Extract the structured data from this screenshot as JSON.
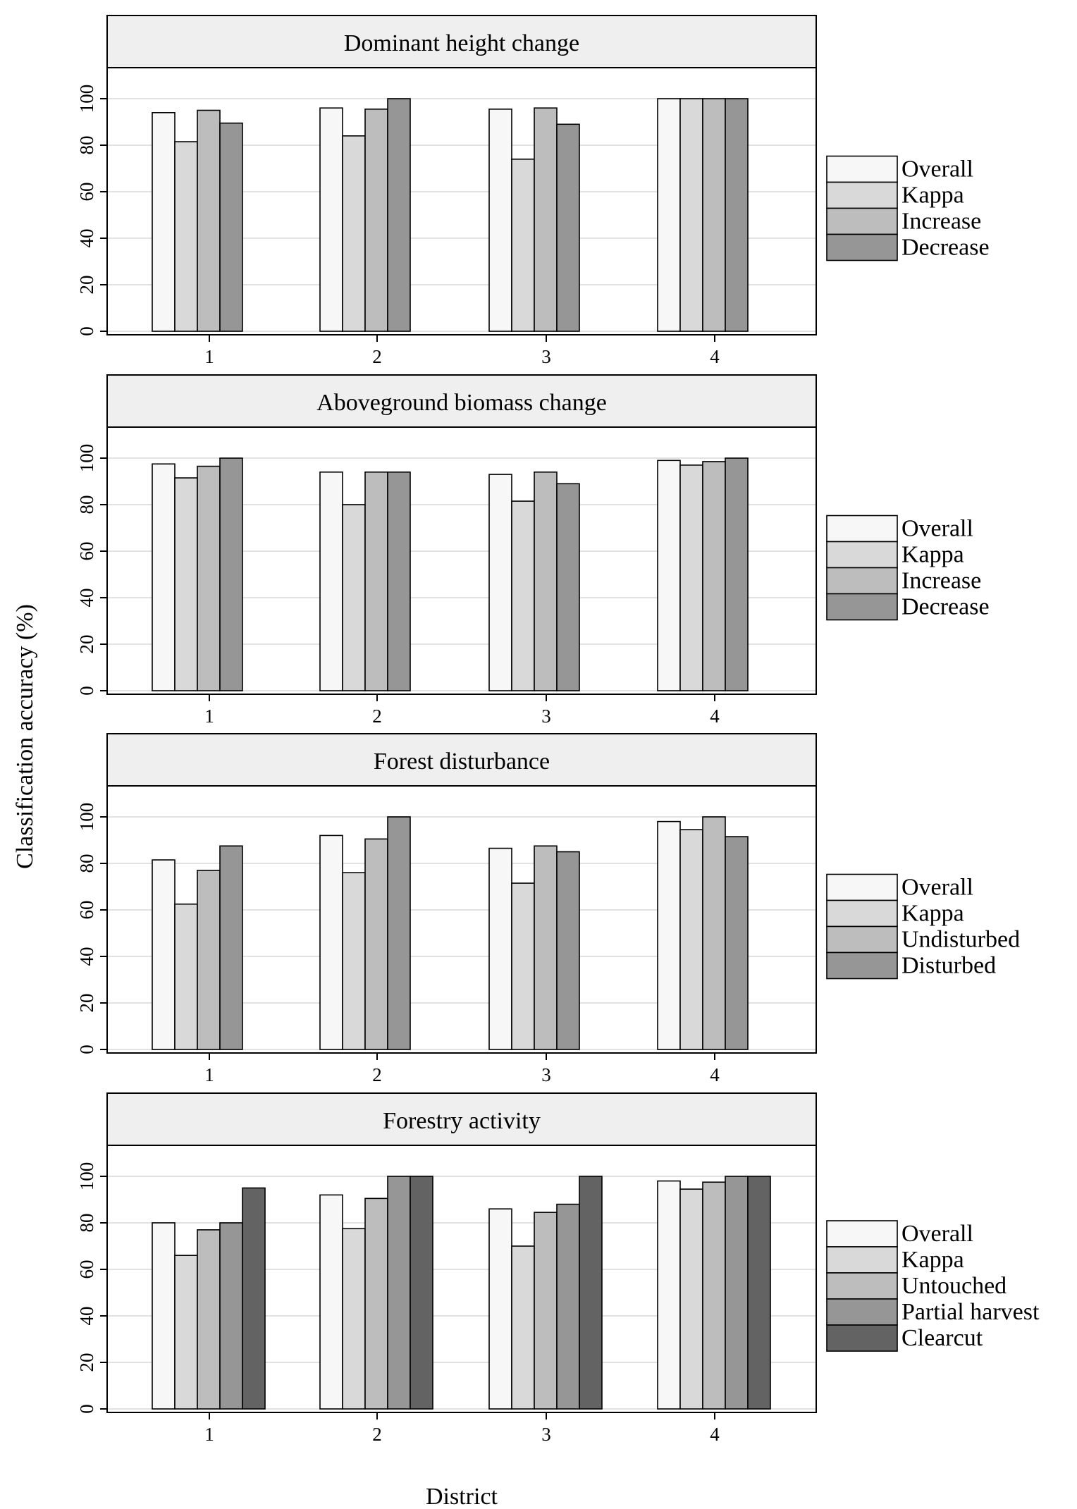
{
  "figure": {
    "ylabel": "Classification accuracy (%)",
    "xlabel": "District"
  },
  "colors": {
    "background": "#ffffff",
    "strip_fill": "#efefef",
    "gridline": "#e2e2e2",
    "series_palette": [
      "#f7f7f7",
      "#d9d9d9",
      "#bdbdbd",
      "#969696",
      "#636363"
    ]
  },
  "chart_data": [
    {
      "type": "bar",
      "title": "Dominant height change",
      "categories": [
        "1",
        "2",
        "3",
        "4"
      ],
      "ylim": [
        0,
        100
      ],
      "yticks": [
        "0",
        "20",
        "40",
        "60",
        "80",
        "100"
      ],
      "grid": true,
      "legend": "right",
      "series": [
        {
          "name": "Overall",
          "values": [
            94,
            96,
            95.5,
            100
          ]
        },
        {
          "name": "Kappa",
          "values": [
            81.5,
            84,
            74,
            100
          ]
        },
        {
          "name": "Increase",
          "values": [
            95,
            95.5,
            96,
            100
          ]
        },
        {
          "name": "Decrease",
          "values": [
            89.5,
            100,
            89,
            100
          ]
        }
      ]
    },
    {
      "type": "bar",
      "title": "Aboveground biomass change",
      "categories": [
        "1",
        "2",
        "3",
        "4"
      ],
      "ylim": [
        0,
        100
      ],
      "yticks": [
        "0",
        "20",
        "40",
        "60",
        "80",
        "100"
      ],
      "grid": true,
      "legend": "right",
      "series": [
        {
          "name": "Overall",
          "values": [
            97.5,
            94,
            93,
            99
          ]
        },
        {
          "name": "Kappa",
          "values": [
            91.5,
            80,
            81.5,
            97
          ]
        },
        {
          "name": "Increase",
          "values": [
            96.5,
            94,
            94,
            98.5
          ]
        },
        {
          "name": "Decrease",
          "values": [
            100,
            94,
            89,
            100
          ]
        }
      ]
    },
    {
      "type": "bar",
      "title": "Forest disturbance",
      "categories": [
        "1",
        "2",
        "3",
        "4"
      ],
      "ylim": [
        0,
        100
      ],
      "yticks": [
        "0",
        "20",
        "40",
        "60",
        "80",
        "100"
      ],
      "grid": true,
      "legend": "right",
      "series": [
        {
          "name": "Overall",
          "values": [
            81.5,
            92,
            86.5,
            98
          ]
        },
        {
          "name": "Kappa",
          "values": [
            62.5,
            76,
            71.5,
            94.5
          ]
        },
        {
          "name": "Undisturbed",
          "values": [
            77,
            90.5,
            87.5,
            100
          ]
        },
        {
          "name": "Disturbed",
          "values": [
            87.5,
            100,
            85,
            91.5
          ]
        }
      ]
    },
    {
      "type": "bar",
      "title": "Forestry activity",
      "categories": [
        "1",
        "2",
        "3",
        "4"
      ],
      "ylim": [
        0,
        100
      ],
      "yticks": [
        "0",
        "20",
        "40",
        "60",
        "80",
        "100"
      ],
      "grid": true,
      "legend": "right",
      "series": [
        {
          "name": "Overall",
          "values": [
            80,
            92,
            86,
            98
          ]
        },
        {
          "name": "Kappa",
          "values": [
            66,
            77.5,
            70,
            94.5
          ]
        },
        {
          "name": "Untouched",
          "values": [
            77,
            90.5,
            84.5,
            97.5
          ]
        },
        {
          "name": "Partial harvest",
          "values": [
            80,
            100,
            88,
            100
          ]
        },
        {
          "name": "Clearcut",
          "values": [
            95,
            100,
            100,
            100
          ]
        }
      ]
    }
  ]
}
